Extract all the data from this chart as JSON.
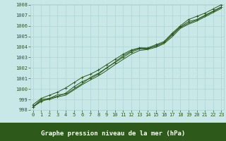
{
  "x": [
    0,
    1,
    2,
    3,
    4,
    5,
    6,
    7,
    8,
    9,
    10,
    11,
    12,
    13,
    14,
    15,
    16,
    17,
    18,
    19,
    20,
    21,
    22,
    23
  ],
  "line_main": [
    998.3,
    998.8,
    999.1,
    999.3,
    999.6,
    1000.2,
    1000.7,
    1001.0,
    1001.4,
    1002.0,
    1002.5,
    1003.0,
    1003.5,
    1003.8,
    1003.8,
    1004.1,
    1004.4,
    1005.2,
    1005.9,
    1006.4,
    1006.6,
    1007.0,
    1007.4,
    1007.8
  ],
  "line_upper": [
    998.5,
    999.1,
    999.4,
    999.7,
    1000.1,
    1000.6,
    1001.1,
    1001.4,
    1001.8,
    1002.3,
    1002.8,
    1003.3,
    1003.7,
    1003.9,
    1003.9,
    1004.2,
    1004.5,
    1005.3,
    1006.0,
    1006.6,
    1006.9,
    1007.2,
    1007.6,
    1008.0
  ],
  "line_diverge": [
    998.3,
    999.0,
    999.1,
    999.45,
    999.5,
    1000.0,
    1000.5,
    1001.1,
    1001.5,
    1002.0,
    1002.55,
    1003.15,
    1003.6,
    1003.9,
    1003.85,
    1004.05,
    1004.4,
    1005.1,
    1005.85,
    1006.25,
    1006.55,
    1006.95,
    1007.35,
    1007.75
  ],
  "line_low": [
    998.25,
    998.9,
    999.0,
    999.25,
    999.4,
    999.9,
    1000.4,
    1000.85,
    1001.25,
    1001.75,
    1002.3,
    1002.8,
    1003.3,
    1003.65,
    1003.75,
    1003.95,
    1004.3,
    1004.95,
    1005.75,
    1006.15,
    1006.45,
    1006.85,
    1007.25,
    1007.65
  ],
  "bg_color": "#c8e8e8",
  "plot_bg": "#c8e8e8",
  "footer_bg": "#2d5a1b",
  "line_color": "#2d5a1b",
  "grid_color": "#a8d0d0",
  "xlabel": "Graphe pression niveau de la mer (hPa)",
  "ylim": [
    998,
    1008
  ],
  "xlim": [
    -0.3,
    23.3
  ],
  "yticks": [
    998,
    999,
    1000,
    1001,
    1002,
    1003,
    1004,
    1005,
    1006,
    1007,
    1008
  ],
  "xticks": [
    0,
    1,
    2,
    3,
    4,
    5,
    6,
    7,
    8,
    9,
    10,
    11,
    12,
    13,
    14,
    15,
    16,
    17,
    18,
    19,
    20,
    21,
    22,
    23
  ],
  "tick_fontsize": 5,
  "xlabel_fontsize": 6.5,
  "markersize": 2.0,
  "linewidth": 0.7
}
